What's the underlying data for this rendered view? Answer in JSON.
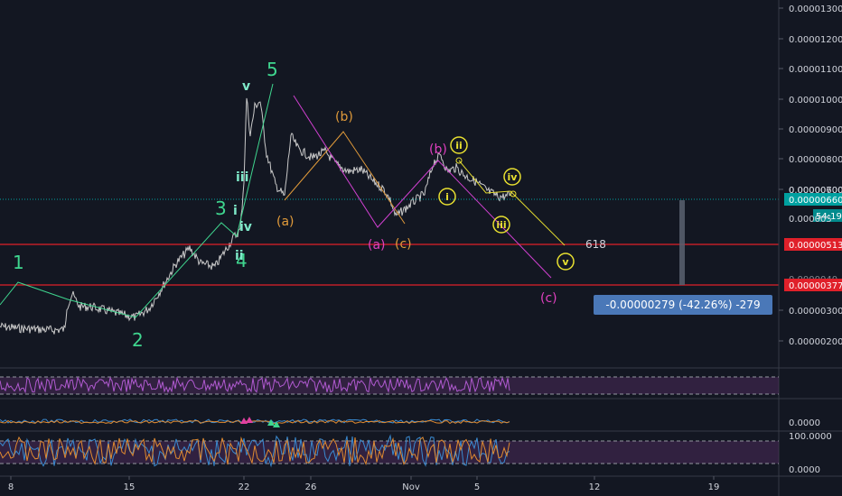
{
  "chart_data": {
    "type": "line",
    "instrument": "",
    "y_axis": {
      "ticks": [
        "0.00001300",
        "0.00001200",
        "0.00001100",
        "0.00001000",
        "0.00000900",
        "0.00000800",
        "0.00000700",
        "0.00000600",
        "0.00000400",
        "0.00000300",
        "0.00000200"
      ],
      "ylim": [
        1.5e-06,
        1.34e-05
      ]
    },
    "x_axis": {
      "ticks": [
        "8",
        "15",
        "22",
        "26",
        "Nov",
        "5",
        "12",
        "19"
      ]
    },
    "price_labels": {
      "current": "0.00000660",
      "countdown": "54:19",
      "support1": "0.00000513",
      "support2": "0.00000377",
      "partial": "0.000005",
      "partial2": "0.0000040"
    },
    "measure_label": "-0.00000279 (-42.26%) -279",
    "fib_label": "618",
    "colors": {
      "background": "#131722",
      "price": "#c9c9c9",
      "wave_green": "#3fd68f",
      "wave_teal": "#7ee8c8",
      "wave_orange": "#e09a3a",
      "wave_magenta": "#e040c0",
      "wave_yellow": "#e8e030",
      "red_line": "#e0202a",
      "current_line": "#00a0a0",
      "measure_box": "#4a78b8"
    },
    "waves": {
      "primary": [
        "1",
        "2",
        "3",
        "4",
        "5"
      ],
      "minor": [
        "i",
        "ii",
        "iii",
        "iv",
        "v"
      ],
      "corrective": [
        "(a)",
        "(b)",
        "(c)"
      ],
      "corrective2": [
        "(a)",
        "(b)",
        "(c)"
      ],
      "sub": [
        "i",
        "ii",
        "iii",
        "iv",
        "v"
      ]
    },
    "indicators": {
      "osc2_value": "0.0000",
      "osc3_top": "100.0000",
      "osc3_bottom": "0.0000"
    }
  }
}
